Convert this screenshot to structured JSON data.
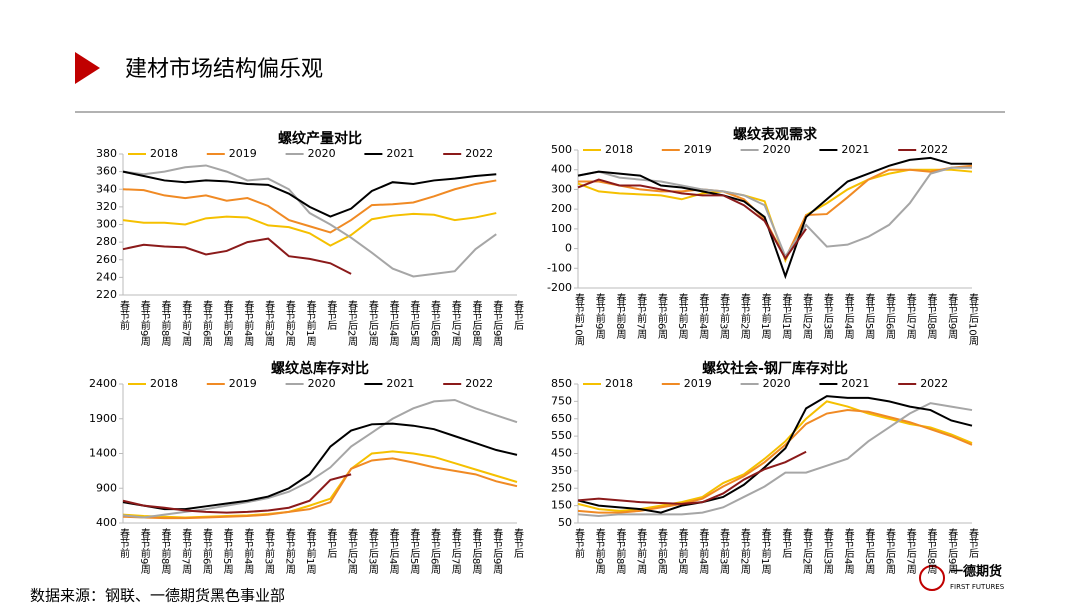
{
  "header": {
    "title": "建材市场结构偏乐观"
  },
  "source": "数据来源：钢联、一德期货黑色事业部",
  "logo": {
    "name": "一德期货",
    "sub": "FIRST FUTURES"
  },
  "chart_data": [
    {
      "type": "line",
      "title": "螺纹产量对比",
      "categories": [
        "春节前",
        "春节前9周",
        "春节前8周",
        "春节前7周",
        "春节前6周",
        "春节前5周",
        "春节前4周",
        "春节前3周",
        "春节前2周",
        "春节前1周",
        "春节后",
        "春节后2周",
        "春节后3周",
        "春节后4周",
        "春节后5周",
        "春节后6周",
        "春节后7周",
        "春节后8周",
        "春节后9周",
        "春节后"
      ],
      "ylim": [
        220,
        380
      ],
      "yticks": [
        220,
        240,
        260,
        280,
        300,
        320,
        340,
        360,
        380
      ],
      "series": [
        {
          "name": "2018",
          "color": "#f5c000",
          "values": [
            305,
            302,
            302,
            300,
            307,
            309,
            308,
            299,
            297,
            290,
            276,
            288,
            306,
            310,
            312,
            311,
            305,
            308,
            313,
            null
          ]
        },
        {
          "name": "2019",
          "color": "#f08a24",
          "values": [
            340,
            339,
            333,
            330,
            333,
            327,
            330,
            321,
            305,
            298,
            291,
            305,
            322,
            323,
            325,
            332,
            340,
            346,
            350,
            null
          ]
        },
        {
          "name": "2020",
          "color": "#a6a6a6",
          "values": [
            360,
            357,
            360,
            365,
            367,
            360,
            350,
            352,
            340,
            313,
            300,
            285,
            268,
            250,
            241,
            244,
            247,
            272,
            289,
            null
          ]
        },
        {
          "name": "2021",
          "color": "#000000",
          "values": [
            360,
            355,
            350,
            348,
            350,
            349,
            346,
            345,
            335,
            320,
            309,
            318,
            338,
            348,
            346,
            350,
            352,
            355,
            357,
            null
          ]
        },
        {
          "name": "2022",
          "color": "#8b1a1a",
          "values": [
            272,
            277,
            275,
            274,
            266,
            270,
            280,
            284,
            264,
            261,
            256,
            244,
            null,
            null,
            null,
            null,
            null,
            null,
            null,
            null
          ]
        }
      ]
    },
    {
      "type": "line",
      "title": "螺纹表观需求",
      "categories": [
        "春节前10周",
        "春节前9周",
        "春节前8周",
        "春节前7周",
        "春节前6周",
        "春节前5周",
        "春节前4周",
        "春节前3周",
        "春节前2周",
        "春节前1周",
        "春节后1周",
        "春节后2周",
        "春节后3周",
        "春节后4周",
        "春节后5周",
        "春节后6周",
        "春节后7周",
        "春节后8周",
        "春节后9周",
        "春节后10周"
      ],
      "ylim": [
        -200,
        500
      ],
      "yticks": [
        -200,
        -100,
        0,
        100,
        200,
        300,
        400,
        500
      ],
      "series": [
        {
          "name": "2018",
          "color": "#f5c000",
          "values": [
            330,
            290,
            280,
            275,
            270,
            250,
            280,
            290,
            270,
            240,
            -60,
            170,
            230,
            300,
            350,
            380,
            400,
            400,
            400,
            390
          ]
        },
        {
          "name": "2019",
          "color": "#f08a24",
          "values": [
            340,
            340,
            320,
            300,
            290,
            290,
            300,
            290,
            250,
            150,
            -50,
            170,
            175,
            260,
            350,
            400,
            400,
            390,
            410,
            420
          ]
        },
        {
          "name": "2020",
          "color": "#a6a6a6",
          "values": [
            370,
            390,
            360,
            350,
            340,
            320,
            300,
            290,
            270,
            220,
            -40,
            120,
            10,
            20,
            60,
            120,
            230,
            380,
            410,
            410
          ]
        },
        {
          "name": "2021",
          "color": "#000000",
          "values": [
            370,
            390,
            380,
            370,
            320,
            310,
            290,
            270,
            240,
            160,
            -140,
            160,
            250,
            340,
            380,
            420,
            450,
            460,
            430,
            430
          ]
        },
        {
          "name": "2022",
          "color": "#8b1a1a",
          "values": [
            310,
            350,
            320,
            320,
            300,
            280,
            270,
            270,
            220,
            140,
            -50,
            100,
            null,
            null,
            null,
            null,
            null,
            null,
            null,
            null
          ]
        }
      ]
    },
    {
      "type": "line",
      "title": "螺纹总库存对比",
      "categories": [
        "春节前",
        "春节前9周",
        "春节前8周",
        "春节前7周",
        "春节前6周",
        "春节前5周",
        "春节前4周",
        "春节前3周",
        "春节前2周",
        "春节前1周",
        "春节后",
        "春节后2周",
        "春节后3周",
        "春节后4周",
        "春节后5周",
        "春节后6周",
        "春节后7周",
        "春节后8周",
        "春节后9周",
        "春节后"
      ],
      "ylim": [
        400,
        2400
      ],
      "yticks": [
        400,
        900,
        1400,
        1900,
        2400
      ],
      "series": [
        {
          "name": "2018",
          "color": "#f5c000",
          "values": [
            520,
            500,
            490,
            480,
            490,
            500,
            510,
            530,
            560,
            650,
            750,
            1180,
            1400,
            1430,
            1400,
            1350,
            1260,
            1170,
            1080,
            990
          ]
        },
        {
          "name": "2019",
          "color": "#f08a24",
          "values": [
            490,
            480,
            470,
            470,
            480,
            490,
            500,
            520,
            560,
            600,
            700,
            1180,
            1300,
            1330,
            1270,
            1200,
            1150,
            1100,
            1000,
            930
          ]
        },
        {
          "name": "2020",
          "color": "#a6a6a6",
          "values": [
            510,
            480,
            520,
            560,
            600,
            650,
            700,
            760,
            850,
            1000,
            1200,
            1500,
            1700,
            1900,
            2050,
            2150,
            2170,
            2050,
            1950,
            1850
          ]
        },
        {
          "name": "2021",
          "color": "#000000",
          "values": [
            700,
            650,
            600,
            600,
            640,
            680,
            720,
            780,
            900,
            1100,
            1500,
            1730,
            1820,
            1830,
            1800,
            1750,
            1650,
            1550,
            1450,
            1380
          ]
        },
        {
          "name": "2022",
          "color": "#8b1a1a",
          "values": [
            720,
            650,
            620,
            580,
            560,
            550,
            560,
            580,
            620,
            720,
            1020,
            1100,
            null,
            null,
            null,
            null,
            null,
            null,
            null,
            null
          ]
        }
      ]
    },
    {
      "type": "line",
      "title": "螺纹社会-钢厂库存对比",
      "categories": [
        "春节前",
        "春节前9周",
        "春节前8周",
        "春节前7周",
        "春节前6周",
        "春节前5周",
        "春节前4周",
        "春节前3周",
        "春节前2周",
        "春节前1周",
        "春节后",
        "春节后2周",
        "春节后3周",
        "春节后4周",
        "春节后5周",
        "春节后6周",
        "春节后7周",
        "春节后8周",
        "春节后9周",
        "春节后"
      ],
      "ylim": [
        50,
        850
      ],
      "yticks": [
        50,
        150,
        250,
        350,
        450,
        550,
        650,
        750,
        850
      ],
      "series": [
        {
          "name": "2018",
          "color": "#f5c000",
          "values": [
            160,
            130,
            120,
            130,
            150,
            170,
            200,
            280,
            330,
            420,
            520,
            650,
            750,
            720,
            680,
            650,
            620,
            600,
            560,
            510
          ]
        },
        {
          "name": "2019",
          "color": "#f08a24",
          "values": [
            120,
            110,
            110,
            120,
            140,
            160,
            190,
            260,
            320,
            400,
            500,
            620,
            680,
            700,
            690,
            660,
            630,
            590,
            550,
            500
          ]
        },
        {
          "name": "2020",
          "color": "#a6a6a6",
          "values": [
            100,
            90,
            100,
            100,
            100,
            100,
            110,
            140,
            200,
            260,
            340,
            340,
            380,
            420,
            520,
            600,
            680,
            740,
            720,
            700
          ]
        },
        {
          "name": "2021",
          "color": "#000000",
          "values": [
            180,
            150,
            140,
            130,
            110,
            150,
            170,
            200,
            270,
            370,
            480,
            710,
            780,
            770,
            770,
            750,
            720,
            700,
            640,
            610
          ]
        },
        {
          "name": "2022",
          "color": "#8b1a1a",
          "values": [
            180,
            190,
            180,
            170,
            165,
            160,
            170,
            220,
            300,
            360,
            400,
            460,
            null,
            null,
            null,
            null,
            null,
            null,
            null,
            null
          ]
        }
      ]
    }
  ]
}
